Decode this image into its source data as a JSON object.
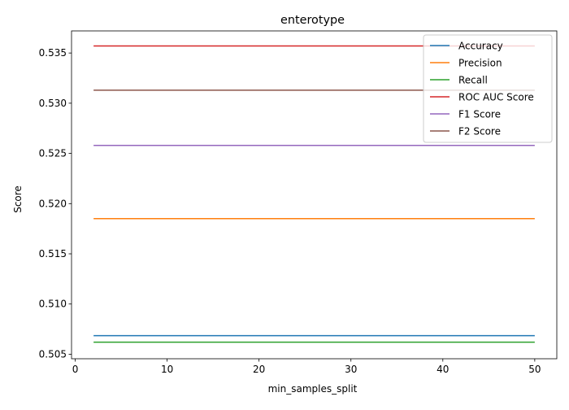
{
  "chart_data": {
    "type": "line",
    "title": "enterotype",
    "xlabel": "min_samples_split",
    "ylabel": "Score",
    "xlim": [
      -0.4,
      52.4
    ],
    "ylim": [
      0.50455,
      0.5372
    ],
    "x_ticks": [
      0,
      10,
      20,
      30,
      40,
      50
    ],
    "y_ticks": [
      0.505,
      0.51,
      0.515,
      0.52,
      0.525,
      0.53,
      0.535
    ],
    "y_tick_labels": [
      "0.505",
      "0.510",
      "0.515",
      "0.520",
      "0.525",
      "0.530",
      "0.535"
    ],
    "x": [
      2,
      50
    ],
    "grid": false,
    "legend_position": "top-right",
    "series": [
      {
        "name": "Accuracy",
        "color": "#1f77b4",
        "values": [
          0.50685,
          0.50685
        ]
      },
      {
        "name": "Precision",
        "color": "#ff7f0e",
        "values": [
          0.5185,
          0.5185
        ]
      },
      {
        "name": "Recall",
        "color": "#2ca02c",
        "values": [
          0.5062,
          0.5062
        ]
      },
      {
        "name": "ROC AUC Score",
        "color": "#d62728",
        "values": [
          0.5357,
          0.5357
        ]
      },
      {
        "name": "F1 Score",
        "color": "#9467bd",
        "values": [
          0.5258,
          0.5258
        ]
      },
      {
        "name": "F2 Score",
        "color": "#8c564b",
        "values": [
          0.5313,
          0.5313
        ]
      }
    ]
  }
}
